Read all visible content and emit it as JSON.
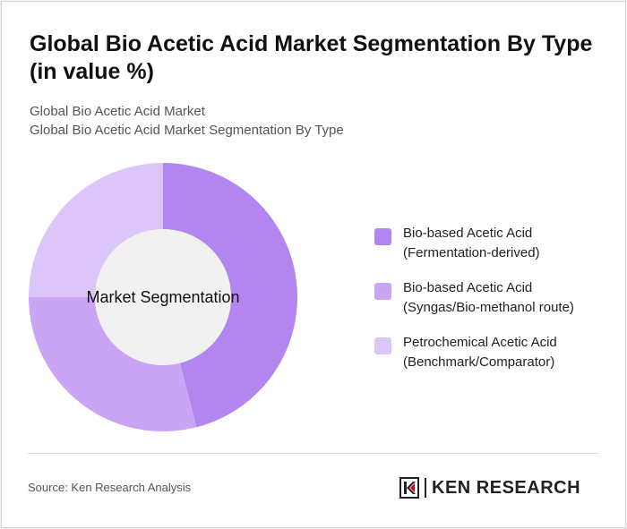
{
  "header": {
    "title": "Global Bio Acetic Acid Market Segmentation By Type (in value %)",
    "breadcrumb_1": "Global Bio Acetic Acid Market",
    "breadcrumb_2": "Global Bio Acetic Acid Market Segmentation By Type"
  },
  "chart_data": {
    "type": "pie",
    "center_label": "Market Segmentation",
    "categories": [
      "Bio-based Acetic Acid\n(Fermentation-derived)",
      "Bio-based Acetic Acid\n(Syngas/Bio-methanol route)",
      "Petrochemical Acetic Acid\n(Benchmark/Comparator)"
    ],
    "values": [
      46,
      29,
      25
    ],
    "colors": [
      "#b385ef",
      "#c9a5f3",
      "#dcc5f8"
    ],
    "legend_position": "right"
  },
  "footer": {
    "source": "Source: Ken Research Analysis",
    "logo_text": "KEN RESEARCH"
  }
}
